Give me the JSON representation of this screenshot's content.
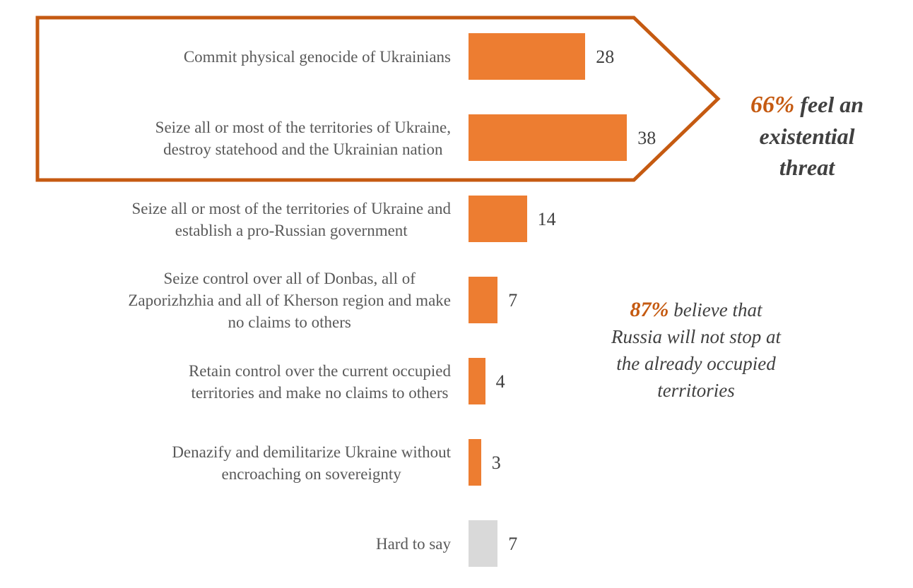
{
  "chart_data": {
    "type": "bar",
    "orientation": "horizontal",
    "title": "",
    "xlabel": "",
    "ylabel": "",
    "unit": "percent",
    "xlim": [
      0,
      40
    ],
    "grid": false,
    "legend": "none",
    "categories": [
      "Commit physical genocide of Ukrainians",
      "Seize all or most of the territories of Ukraine,\ndestroy statehood and the Ukrainian nation",
      "Seize all or most of the territories of Ukraine and\nestablish a pro-Russian government",
      "Seize control over all of Donbas, all of\nZaporizhzhia and all of Kherson region and make\nno claims to others",
      "Retain control over the current occupied\nterritories and make no claims to others",
      "Denazify and demilitarize Ukraine without\nencroaching on sovereignty",
      "Hard to say"
    ],
    "values": [
      28,
      38,
      14,
      7,
      4,
      3,
      7
    ],
    "bar_colors": [
      "#ED7D31",
      "#ED7D31",
      "#ED7D31",
      "#ED7D31",
      "#ED7D31",
      "#ED7D31",
      "#D9D9D9"
    ],
    "highlighted_group_rows": [
      0,
      1
    ]
  },
  "callouts": {
    "existential": {
      "pct": "66%",
      "text": " feel an\nexistential\nthreat"
    },
    "not_stop": {
      "pct": "87%",
      "text": " believe that\nRussia will not stop at\nthe already occupied\nterritories"
    }
  },
  "colors": {
    "bar_orange": "#ED7D31",
    "accent_dark_orange": "#C55A11",
    "gray_bar": "#D9D9D9",
    "value_text": "#404040",
    "label_text": "#595959"
  }
}
